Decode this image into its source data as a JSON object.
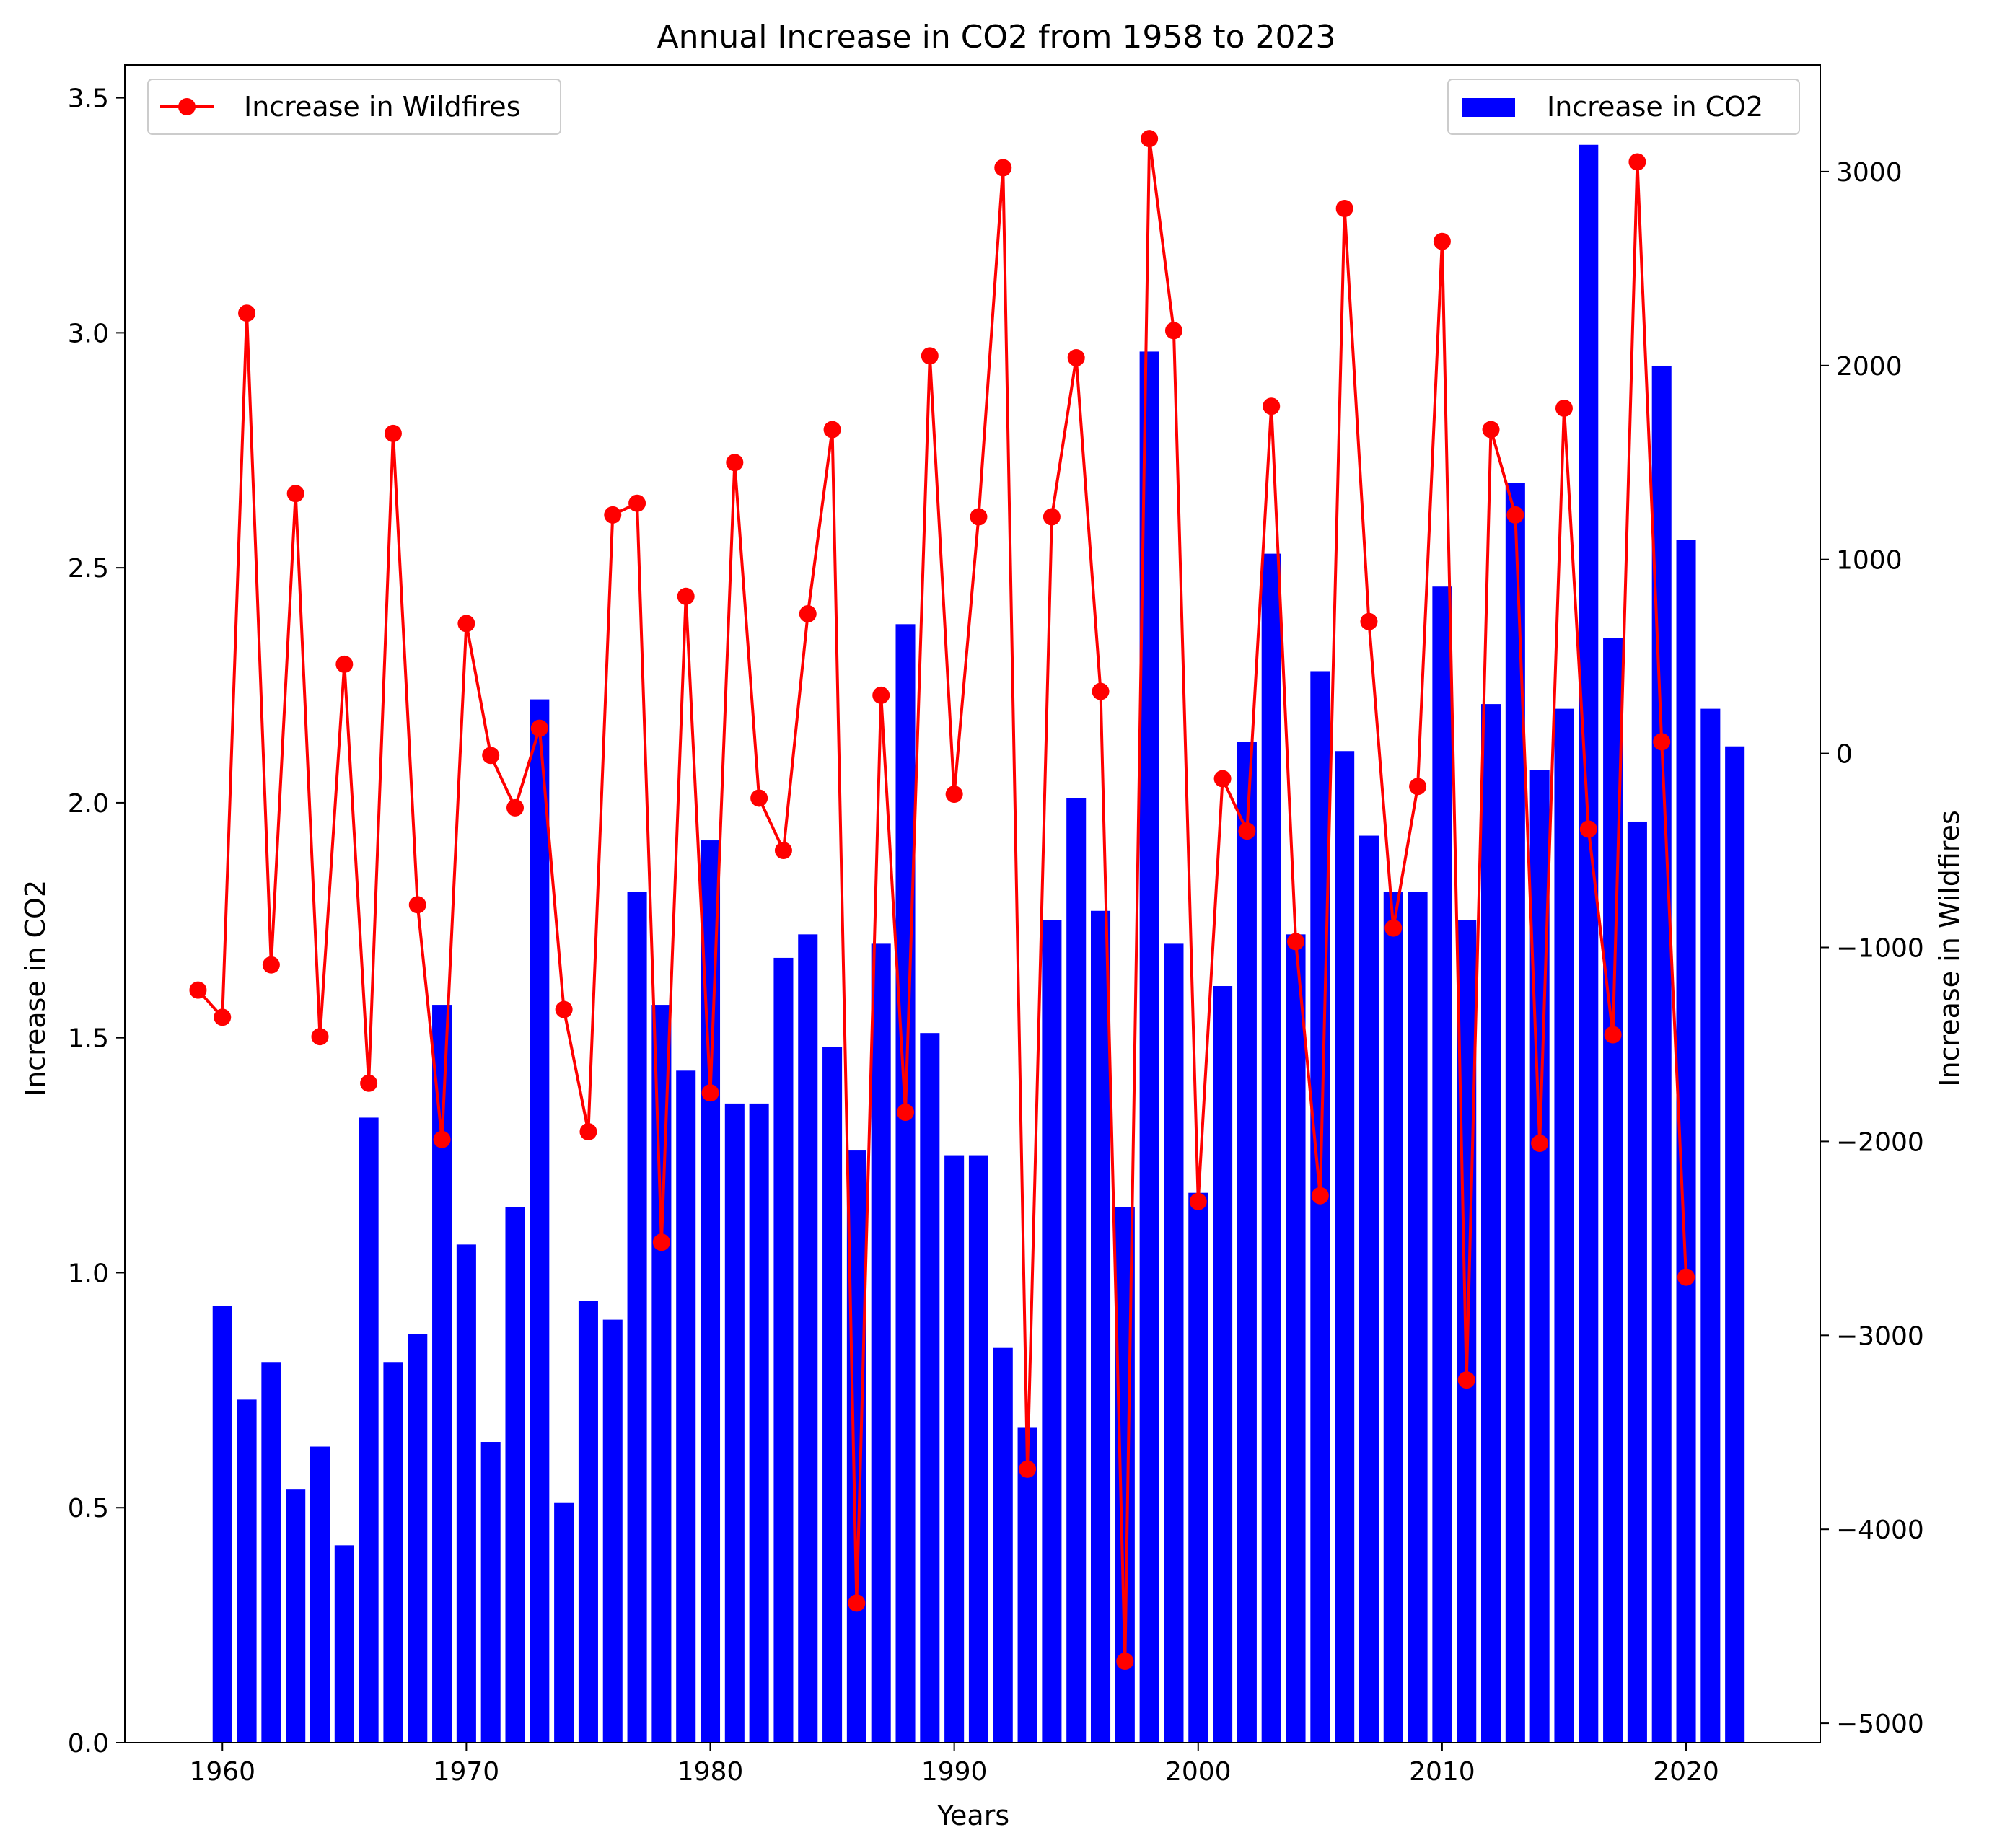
{
  "chart_data": {
    "type": "bar+line",
    "title": "Annual Increase in CO2 from 1958 to 2023",
    "xlabel": "Years",
    "ylabel": "Increase in CO2",
    "y2label": "Increase in Wildfires",
    "xlim": [
      1956,
      2025.5
    ],
    "ylim": [
      0,
      3.57
    ],
    "y2lim": [
      -5100,
      3550
    ],
    "xticks": [
      1960,
      1970,
      1980,
      1990,
      2000,
      2010,
      2020
    ],
    "yticks": [
      0.0,
      0.5,
      1.0,
      1.5,
      2.0,
      2.5,
      3.0,
      3.5
    ],
    "y2ticks": [
      -5000,
      -4000,
      -3000,
      -2000,
      -1000,
      0,
      1000,
      2000,
      3000
    ],
    "grid": false,
    "series": [
      {
        "name": "Increase in CO2",
        "type": "bar",
        "axis": "left",
        "color": "#0000ff",
        "x": [
          1960,
          1961,
          1962,
          1963,
          1964,
          1965,
          1966,
          1967,
          1968,
          1969,
          1970,
          1971,
          1972,
          1973,
          1974,
          1975,
          1976,
          1977,
          1978,
          1979,
          1980,
          1981,
          1982,
          1983,
          1984,
          1985,
          1986,
          1987,
          1988,
          1989,
          1990,
          1991,
          1992,
          1993,
          1994,
          1995,
          1996,
          1997,
          1998,
          1999,
          2000,
          2001,
          2002,
          2003,
          2004,
          2005,
          2006,
          2007,
          2008,
          2009,
          2010,
          2011,
          2012,
          2013,
          2014,
          2015,
          2016,
          2017,
          2018,
          2019,
          2020,
          2021,
          2022
        ],
        "values": [
          0.93,
          0.73,
          0.81,
          0.54,
          0.63,
          0.42,
          1.33,
          0.81,
          0.87,
          1.57,
          1.06,
          0.64,
          1.14,
          2.22,
          0.51,
          0.94,
          0.9,
          1.81,
          1.57,
          1.43,
          1.92,
          1.36,
          1.36,
          1.67,
          1.72,
          1.48,
          1.26,
          1.7,
          2.38,
          1.51,
          1.25,
          1.25,
          0.84,
          0.67,
          1.75,
          2.01,
          1.77,
          1.14,
          2.96,
          1.7,
          1.17,
          1.61,
          2.13,
          2.53,
          1.72,
          2.28,
          2.11,
          1.93,
          1.81,
          1.81,
          2.46,
          1.75,
          2.21,
          2.68,
          2.07,
          2.2,
          3.4,
          2.35,
          1.96,
          2.93,
          2.56,
          2.2,
          2.12
        ]
      },
      {
        "name": "Increase in Wildfires",
        "type": "line",
        "axis": "right",
        "color": "#ff0000",
        "x": [
          1959,
          1960,
          1961,
          1962,
          1963,
          1964,
          1965,
          1966,
          1967,
          1968,
          1969,
          1970,
          1971,
          1972,
          1973,
          1974,
          1975,
          1976,
          1977,
          1978,
          1979,
          1980,
          1981,
          1982,
          1983,
          1984,
          1985,
          1986,
          1987,
          1988,
          1989,
          1990,
          1991,
          1992,
          1993,
          1994,
          1995,
          1996,
          1997,
          1998,
          1999,
          2000,
          2001,
          2002,
          2003,
          2004,
          2005,
          2006,
          2007,
          2008,
          2009,
          2010,
          2011,
          2012,
          2013,
          2014,
          2015,
          2016,
          2017,
          2018,
          2019,
          2020
        ],
        "values": [
          -1220,
          -1360,
          2270,
          -1090,
          1340,
          -1460,
          460,
          -1700,
          1650,
          -780,
          -1990,
          670,
          -10,
          -280,
          130,
          -1320,
          -1950,
          1230,
          1290,
          -2520,
          810,
          -1750,
          1500,
          -230,
          -500,
          720,
          1670,
          -4380,
          300,
          -1850,
          2050,
          -210,
          1220,
          3020,
          -3690,
          1220,
          2040,
          320,
          -4680,
          3170,
          2180,
          -2310,
          -130,
          -400,
          1790,
          -970,
          -2280,
          2810,
          680,
          -900,
          -170,
          2640,
          -3230,
          1670,
          1230,
          -2010,
          1780,
          -390,
          -1450,
          3050,
          60,
          -2700
        ]
      }
    ],
    "legends": [
      {
        "placement": "top-left",
        "label": "Increase in Wildfires"
      },
      {
        "placement": "top-right",
        "label": "Increase in CO2"
      }
    ]
  }
}
